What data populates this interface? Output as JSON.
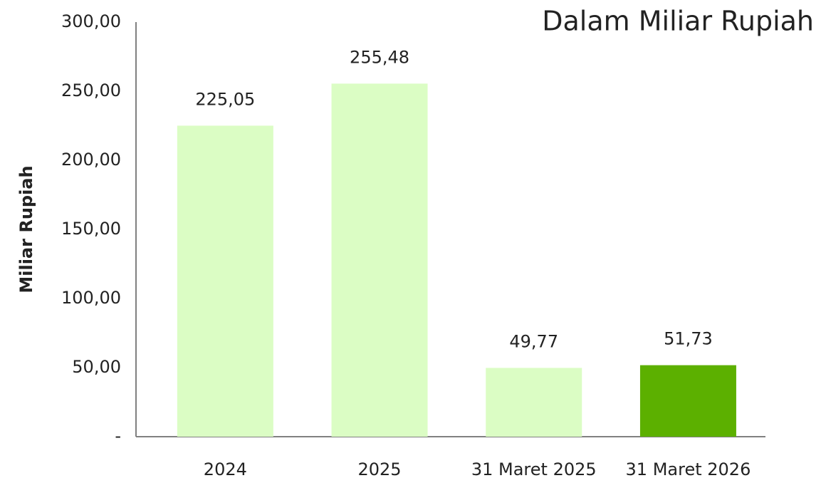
{
  "chart_data": {
    "type": "bar",
    "annotation": "Dalam Miliar Rupiah",
    "y_label": "Miliar Rupiah",
    "categories": [
      "2024",
      "2025",
      "31 Maret 2025",
      "31 Maret 2026"
    ],
    "values": [
      225.05,
      255.48,
      49.77,
      51.73
    ],
    "value_labels": [
      "225,05",
      "255,48",
      "49,77",
      "51,73"
    ],
    "colors": [
      "#dbfdc4",
      "#dbfdc4",
      "#dbfdc4",
      "#5cb000"
    ],
    "ylim": [
      0,
      300
    ],
    "yticks": [
      {
        "value": 0,
        "label": "-"
      },
      {
        "value": 50,
        "label": "50,00"
      },
      {
        "value": 100,
        "label": "100,00"
      },
      {
        "value": 150,
        "label": "150,00"
      },
      {
        "value": 200,
        "label": "200,00"
      },
      {
        "value": 250,
        "label": "250,00"
      },
      {
        "value": 300,
        "label": "300,00"
      }
    ],
    "grid": false
  }
}
